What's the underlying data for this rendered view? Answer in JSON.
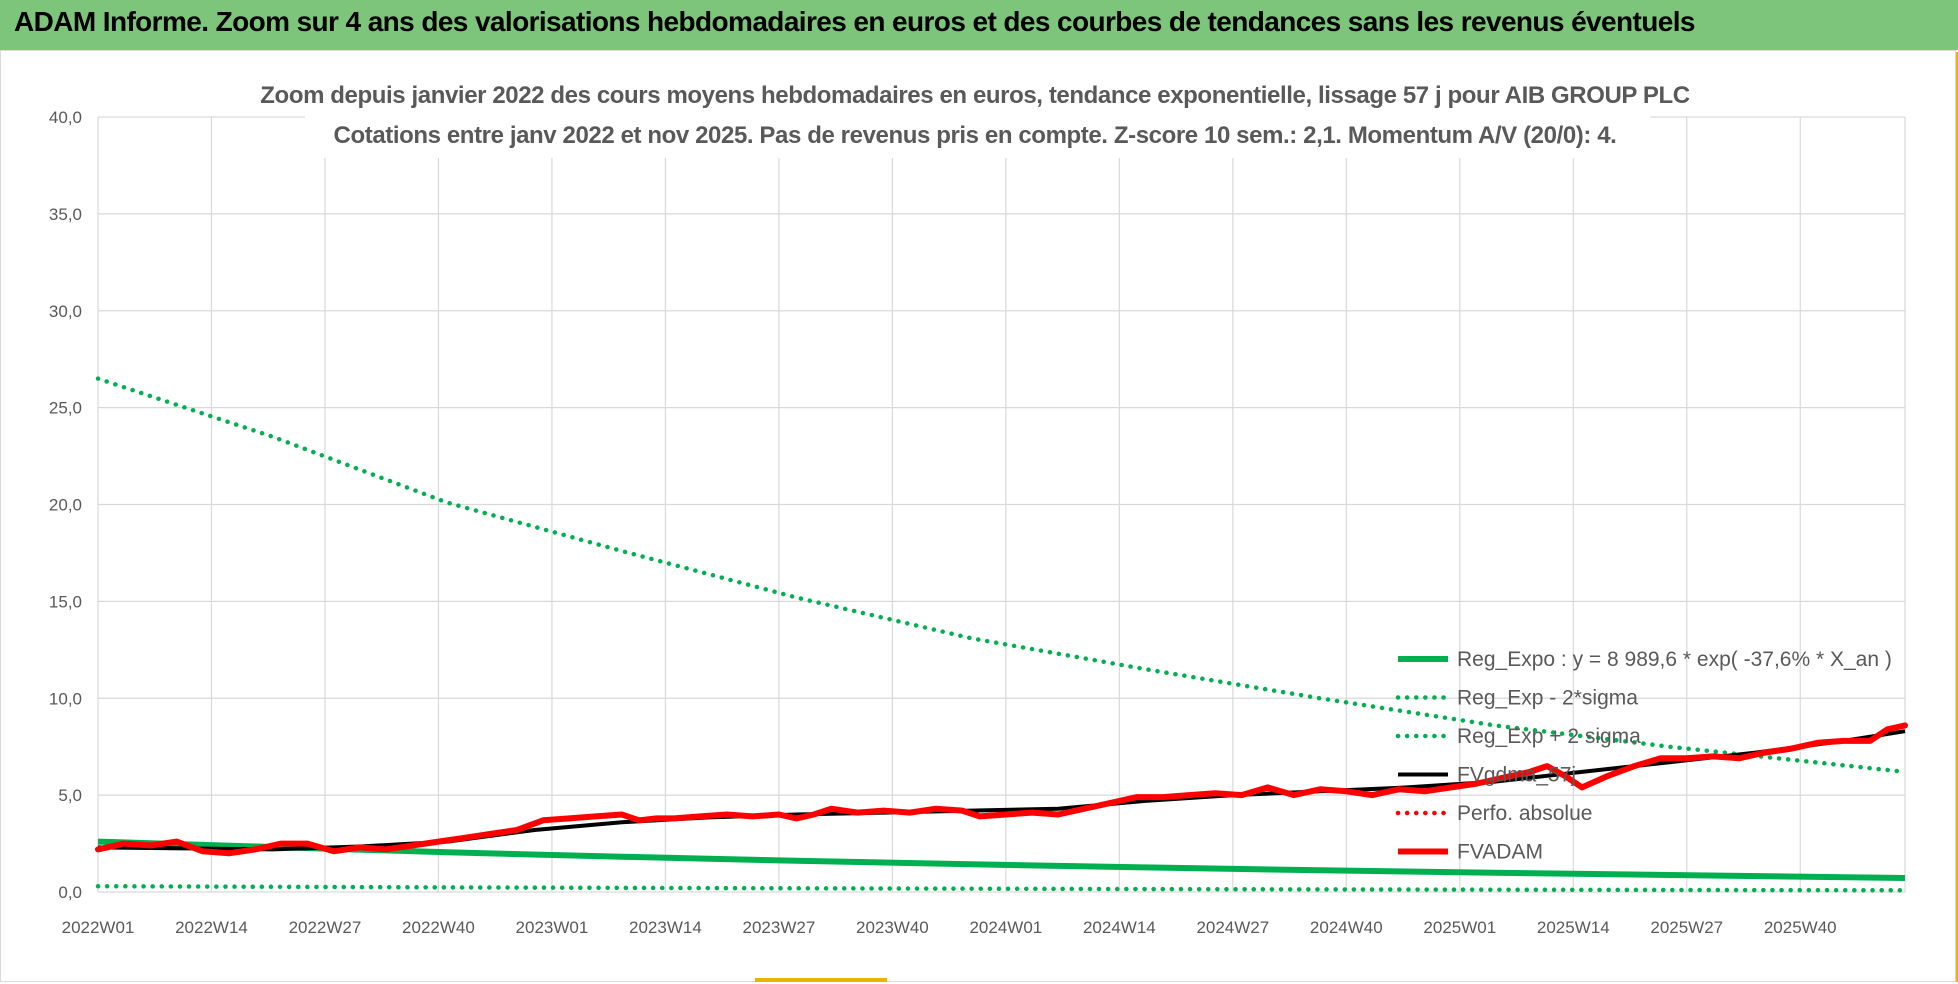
{
  "header": {
    "title": "ADAM Informe. Zoom sur 4 ans des valorisations hebdomadaires en euros et des courbes de tendances sans les revenus éventuels"
  },
  "chart_data": {
    "type": "line",
    "title_line1": "Zoom depuis janvier 2022 des cours moyens hebdomadaires en euros, tendance exponentielle, lissage 57 j pour AIB GROUP PLC",
    "title_line2": "Cotations entre janv 2022 et nov 2025. Pas de revenus pris en compte. Z-score 10 sem.: 2,1. Momentum A/V (20/0): 4.",
    "ylim": [
      0,
      40
    ],
    "y_ticks": [
      "0,0",
      "5,0",
      "10,0",
      "15,0",
      "20,0",
      "25,0",
      "30,0",
      "35,0",
      "40,0"
    ],
    "y_tick_values": [
      0,
      5,
      10,
      15,
      20,
      25,
      30,
      35,
      40
    ],
    "x_ticks": [
      "2022W01",
      "2022W14",
      "2022W27",
      "2022W40",
      "2023W01",
      "2023W14",
      "2023W27",
      "2023W40",
      "2024W01",
      "2024W14",
      "2024W27",
      "2024W40",
      "2025W01",
      "2025W14",
      "2025W27",
      "2025W40"
    ],
    "x_tick_index": [
      0,
      13,
      26,
      39,
      52,
      65,
      78,
      91,
      104,
      117,
      130,
      143,
      156,
      169,
      182,
      195
    ],
    "x_max_index": 207,
    "grid": true,
    "legend_position": "right",
    "series": [
      {
        "name": "Reg_Expo : y = 8 989,6 * exp( -37,6% *  X_an )",
        "style": "solid",
        "color": "#00b050",
        "x": [
          0,
          20,
          40,
          60,
          80,
          100,
          120,
          140,
          160,
          180,
          207
        ],
        "y": [
          2.6,
          2.32,
          2.05,
          1.82,
          1.61,
          1.43,
          1.27,
          1.12,
          0.99,
          0.88,
          0.72
        ]
      },
      {
        "name": "Reg_Exp - 2*sigma",
        "style": "dotted",
        "color": "#00b050",
        "x": [
          0,
          40,
          80,
          120,
          160,
          207
        ],
        "y": [
          0.3,
          0.24,
          0.19,
          0.15,
          0.12,
          0.09
        ]
      },
      {
        "name": "Reg_Exp + 2 sigma",
        "style": "dotted",
        "color": "#00b050",
        "x": [
          0,
          20,
          40,
          60,
          80,
          100,
          120,
          140,
          160,
          180,
          207
        ],
        "y": [
          26.5,
          23.5,
          20.1,
          17.6,
          15.2,
          13.1,
          11.5,
          10.0,
          8.6,
          7.5,
          6.2
        ]
      },
      {
        "name": "FVgdma_57j",
        "style": "solid",
        "color": "#000000",
        "x": [
          0,
          10,
          20,
          30,
          40,
          50,
          60,
          70,
          80,
          90,
          100,
          110,
          120,
          130,
          140,
          150,
          160,
          170,
          180,
          190,
          200,
          207
        ],
        "y": [
          2.3,
          2.25,
          2.2,
          2.35,
          2.6,
          3.2,
          3.6,
          3.85,
          4.0,
          4.1,
          4.2,
          4.3,
          4.7,
          5.0,
          5.2,
          5.4,
          5.7,
          6.2,
          6.7,
          7.2,
          7.8,
          8.3
        ]
      },
      {
        "name": "Perfo. absolue",
        "style": "dotted",
        "color": "#ff0000",
        "x": [],
        "y": []
      },
      {
        "name": "FVADAM",
        "style": "solid",
        "color": "#ff0000",
        "x": [
          0,
          3,
          6,
          9,
          12,
          15,
          18,
          21,
          24,
          27,
          30,
          33,
          36,
          39,
          42,
          45,
          48,
          51,
          54,
          57,
          60,
          62,
          64,
          66,
          69,
          72,
          75,
          78,
          80,
          82,
          84,
          87,
          90,
          93,
          96,
          99,
          101,
          104,
          107,
          110,
          113,
          116,
          119,
          122,
          125,
          128,
          131,
          134,
          137,
          140,
          143,
          146,
          149,
          152,
          155,
          158,
          161,
          164,
          166,
          168,
          170,
          173,
          176,
          179,
          182,
          185,
          188,
          191,
          194,
          197,
          200,
          203,
          205,
          207
        ],
        "y": [
          2.2,
          2.5,
          2.4,
          2.6,
          2.1,
          2.0,
          2.2,
          2.5,
          2.5,
          2.1,
          2.3,
          2.2,
          2.4,
          2.6,
          2.8,
          3.0,
          3.2,
          3.7,
          3.8,
          3.9,
          4.0,
          3.7,
          3.8,
          3.8,
          3.9,
          4.0,
          3.9,
          4.0,
          3.8,
          4.0,
          4.3,
          4.1,
          4.2,
          4.1,
          4.3,
          4.2,
          3.9,
          4.0,
          4.1,
          4.0,
          4.3,
          4.6,
          4.9,
          4.9,
          5.0,
          5.1,
          5.0,
          5.4,
          5.0,
          5.3,
          5.2,
          5.0,
          5.3,
          5.2,
          5.4,
          5.6,
          5.9,
          6.2,
          6.5,
          6.0,
          5.4,
          6.0,
          6.5,
          6.9,
          6.9,
          7.0,
          6.9,
          7.2,
          7.4,
          7.7,
          7.8,
          7.8,
          8.4,
          8.6
        ]
      }
    ]
  }
}
